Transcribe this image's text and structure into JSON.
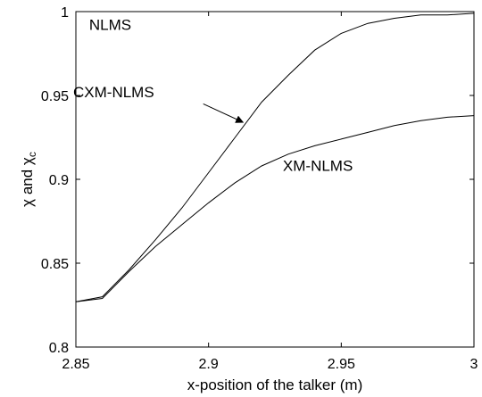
{
  "chart_data": {
    "type": "line",
    "title": "",
    "xlabel": "x-position of the talker (m)",
    "ylabel": {
      "pre": "χ and χ",
      "sub": "c"
    },
    "xlim": [
      2.85,
      3.0
    ],
    "ylim": [
      0.8,
      1.0
    ],
    "grid": false,
    "x_ticks": [
      {
        "value": 2.85,
        "label": "2.85"
      },
      {
        "value": 2.9,
        "label": "2.9"
      },
      {
        "value": 2.95,
        "label": "2.95"
      },
      {
        "value": 3.0,
        "label": "3"
      }
    ],
    "y_ticks": [
      {
        "value": 0.8,
        "label": "0.8"
      },
      {
        "value": 0.85,
        "label": "0.85"
      },
      {
        "value": 0.9,
        "label": "0.9"
      },
      {
        "value": 0.95,
        "label": "0.95"
      },
      {
        "value": 1.0,
        "label": "1"
      }
    ],
    "series": [
      {
        "name": "NLMS",
        "x": [
          2.85,
          2.86,
          2.87,
          2.88,
          2.89,
          2.9,
          2.91,
          2.92,
          2.93,
          2.94,
          2.95,
          2.96,
          2.97,
          2.98,
          2.99,
          3.0
        ],
        "values": [
          1.0,
          1.0,
          1.0,
          1.0,
          1.0,
          1.0,
          1.0,
          1.0,
          1.0,
          1.0,
          1.0,
          1.0,
          1.0,
          1.0,
          1.0,
          1.0
        ],
        "color": "#000000"
      },
      {
        "name": "CXM-NLMS",
        "x": [
          2.85,
          2.86,
          2.87,
          2.88,
          2.89,
          2.9,
          2.91,
          2.92,
          2.93,
          2.94,
          2.95,
          2.96,
          2.97,
          2.98,
          2.99,
          3.0
        ],
        "values": [
          0.827,
          0.83,
          0.846,
          0.864,
          0.883,
          0.904,
          0.925,
          0.946,
          0.962,
          0.977,
          0.987,
          0.993,
          0.996,
          0.998,
          0.998,
          0.999
        ],
        "color": "#000000"
      },
      {
        "name": "XM-NLMS",
        "x": [
          2.85,
          2.86,
          2.87,
          2.88,
          2.89,
          2.9,
          2.91,
          2.92,
          2.93,
          2.94,
          2.95,
          2.96,
          2.97,
          2.98,
          2.99,
          3.0
        ],
        "values": [
          0.827,
          0.829,
          0.845,
          0.86,
          0.873,
          0.886,
          0.898,
          0.908,
          0.915,
          0.92,
          0.924,
          0.928,
          0.932,
          0.935,
          0.937,
          0.938
        ],
        "color": "#000000"
      }
    ],
    "annotations": [
      {
        "text": "NLMS",
        "series": "NLMS",
        "at": [
          2.855,
          0.989
        ]
      },
      {
        "text": "CXM-NLMS",
        "series": "CXM-NLMS",
        "at": [
          2.849,
          0.949
        ]
      },
      {
        "text": "XM-NLMS",
        "series": "XM-NLMS",
        "at": [
          2.928,
          0.905
        ]
      }
    ],
    "arrow": {
      "series": "CXM-NLMS",
      "from": [
        2.898,
        0.945
      ],
      "to": [
        2.913,
        0.934
      ]
    }
  }
}
